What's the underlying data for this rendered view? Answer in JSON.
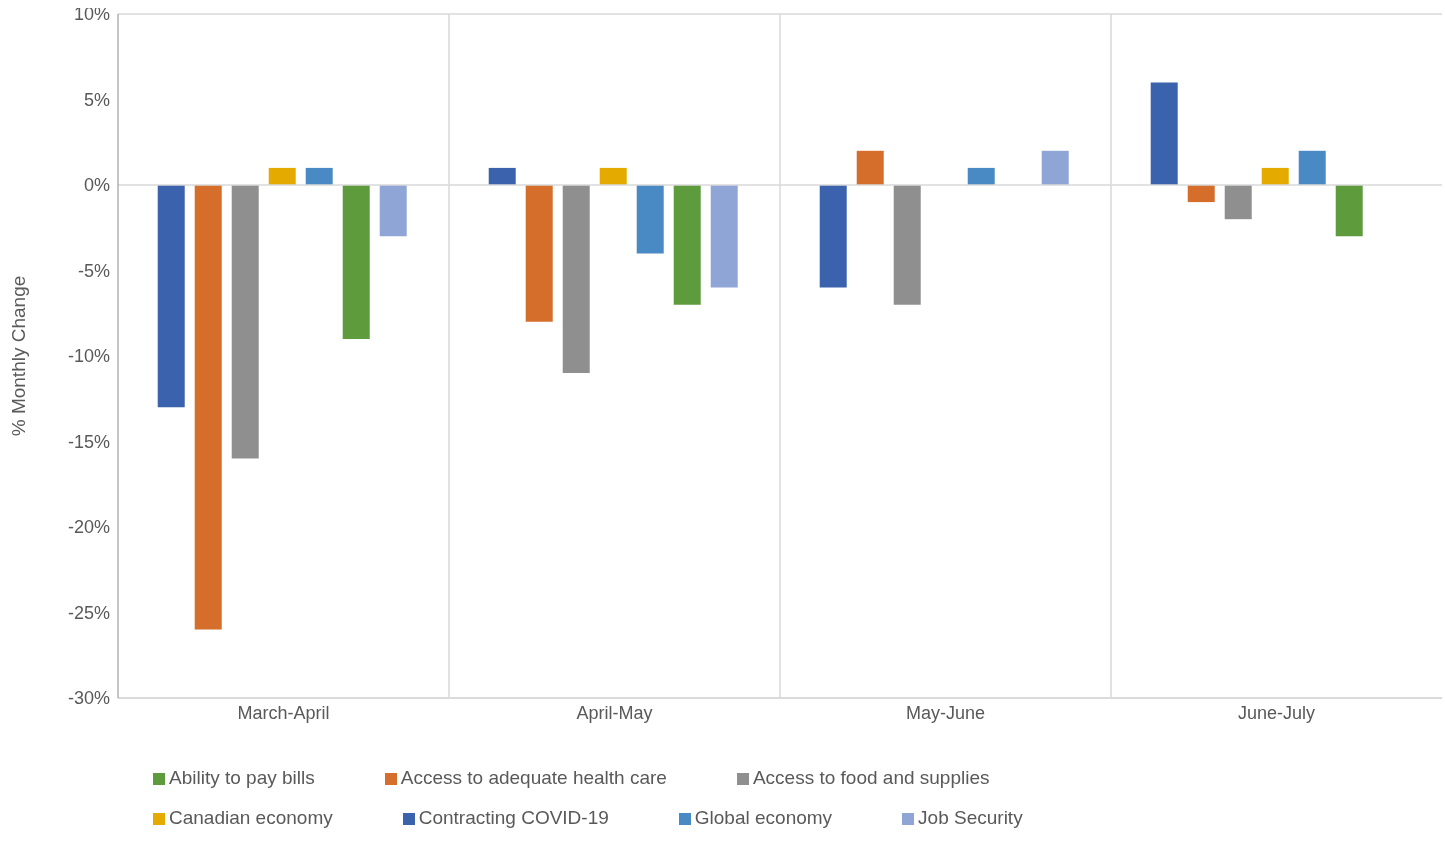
{
  "chart_data": {
    "type": "bar",
    "ylabel": "% Monthly Change",
    "categories": [
      "March-April",
      "April-May",
      "May-June",
      "June-July"
    ],
    "series": [
      {
        "name": "Contracting COVID-19",
        "color": "#3a62ad",
        "values": [
          -13,
          1,
          -6,
          6
        ]
      },
      {
        "name": "Access to adequate health care",
        "color": "#d46e2a",
        "values": [
          -26,
          -8,
          2,
          -1
        ]
      },
      {
        "name": "Access to food and supplies",
        "color": "#8f8f8f",
        "values": [
          -16,
          -11,
          -7,
          -2
        ]
      },
      {
        "name": "Canadian economy",
        "color": "#e4aa00",
        "values": [
          1,
          1,
          0,
          1
        ]
      },
      {
        "name": "Global economy",
        "color": "#4a8ac4",
        "values": [
          1,
          -4,
          1,
          2
        ]
      },
      {
        "name": "Ability to pay bills",
        "color": "#5d9b3d",
        "values": [
          -9,
          -7,
          0,
          -3
        ]
      },
      {
        "name": "Job Security",
        "color": "#8fa5d6",
        "values": [
          -3,
          -6,
          2,
          0
        ]
      }
    ],
    "ylim": [
      -30,
      10
    ],
    "yticks": [
      {
        "value": -30,
        "label": "-30%"
      },
      {
        "value": -25,
        "label": "-25%"
      },
      {
        "value": -20,
        "label": "-20%"
      },
      {
        "value": -15,
        "label": "-15%"
      },
      {
        "value": -10,
        "label": "-10%"
      },
      {
        "value": -5,
        "label": "-5%"
      },
      {
        "value": 0,
        "label": "0%"
      },
      {
        "value": 5,
        "label": "5%"
      },
      {
        "value": 10,
        "label": "10%"
      }
    ],
    "grid": true,
    "legend": "bottom"
  }
}
